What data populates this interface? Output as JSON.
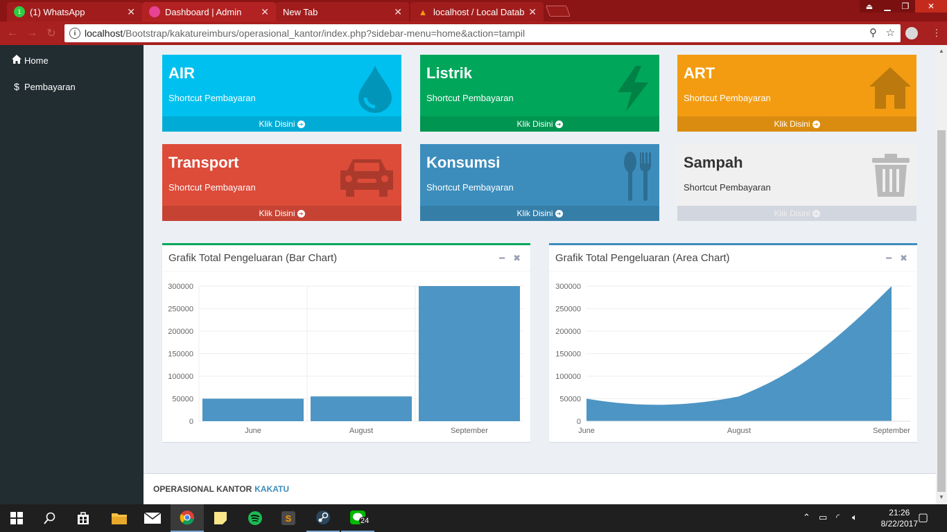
{
  "browser": {
    "tabs": [
      {
        "title": "(1) WhatsApp",
        "icon": "whatsapp-icon",
        "badge": "1"
      },
      {
        "title": "Dashboard | Admin",
        "icon": "admin-icon"
      },
      {
        "title": "New Tab",
        "icon": "none"
      },
      {
        "title": "localhost / Local Databas",
        "icon": "phpmyadmin-icon"
      }
    ],
    "url_host": "localhost",
    "url_path": "/Bootstrap/kakatureimburs/operasional_kantor/index.php?sidebar-menu=home&action=tampil"
  },
  "sidebar": {
    "items": [
      {
        "label": "Home",
        "icon": "home-icon"
      },
      {
        "label": "Pembayaran",
        "icon": "dollar-icon"
      }
    ]
  },
  "boxes": [
    {
      "title": "AIR",
      "subtitle": "Shortcut Pembayaran",
      "link": "Klik Disini",
      "icon": "water-drop-icon",
      "color": "#00c0ef"
    },
    {
      "title": "Listrik",
      "subtitle": "Shortcut Pembayaran",
      "link": "Klik Disini",
      "icon": "lightning-icon",
      "color": "#00a65a"
    },
    {
      "title": "ART",
      "subtitle": "Shortcut Pembayaran",
      "link": "Klik Disini",
      "icon": "house-icon",
      "color": "#f39c12"
    },
    {
      "title": "Transport",
      "subtitle": "Shortcut Pembayaran",
      "link": "Klik Disini",
      "icon": "car-icon",
      "color": "#dd4b39"
    },
    {
      "title": "Konsumsi",
      "subtitle": "Shortcut Pembayaran",
      "link": "Klik Disini",
      "icon": "cutlery-icon",
      "color": "#3c8dbc"
    },
    {
      "title": "Sampah",
      "subtitle": "Shortcut Pembayaran",
      "link": "Klik Disini",
      "icon": "trash-icon",
      "color": "#f0f0f0"
    }
  ],
  "charts_meta": {
    "bar_title": "Grafik Total Pengeluaran (Bar Chart)",
    "area_title": "Grafik Total Pengeluaran (Area Chart)",
    "bar_border": "#00a65a",
    "area_border": "#3c8dbc"
  },
  "chart_data": [
    {
      "type": "bar",
      "title": "Grafik Total Pengeluaran (Bar Chart)",
      "categories": [
        "June",
        "August",
        "September"
      ],
      "values": [
        50000,
        55000,
        300000
      ],
      "ylim": [
        0,
        300000
      ],
      "yticks": [
        0,
        50000,
        100000,
        150000,
        200000,
        250000,
        300000
      ],
      "grid": true,
      "color": "#4d95c4"
    },
    {
      "type": "area",
      "title": "Grafik Total Pengeluaran (Area Chart)",
      "categories": [
        "June",
        "August",
        "September"
      ],
      "values": [
        50000,
        55000,
        300000
      ],
      "ylim": [
        0,
        300000
      ],
      "yticks": [
        0,
        50000,
        100000,
        150000,
        200000,
        250000,
        300000
      ],
      "grid": true,
      "color": "#4d95c4"
    }
  ],
  "footer": {
    "text": "OPERASIONAL KANTOR",
    "brand": "KAKATU"
  },
  "taskbar": {
    "time": "21:26",
    "date": "8/22/2017",
    "line_badge": "24"
  }
}
